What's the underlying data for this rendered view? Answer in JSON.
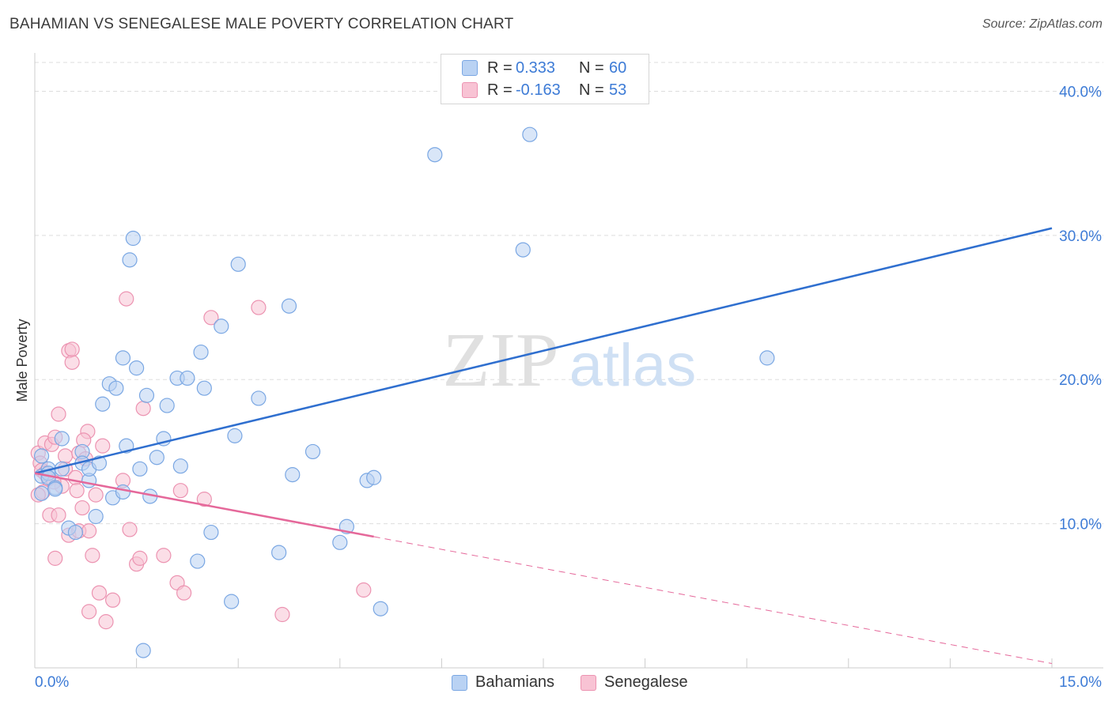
{
  "title": "BAHAMIAN VS SENEGALESE MALE POVERTY CORRELATION CHART",
  "source": "Source: ZipAtlas.com",
  "watermark": {
    "zip": "ZIP",
    "atlas": "atlas"
  },
  "legend": {
    "rows": [
      {
        "r_label": "R =",
        "r_value": "0.333",
        "n_label": "N =",
        "n_value": "60"
      },
      {
        "r_label": "R =",
        "r_value": "-0.163",
        "n_label": "N =",
        "n_value": "53"
      }
    ]
  },
  "bottom_legend": [
    "Bahamians",
    "Senegalese"
  ],
  "colors": {
    "blue_fill": "#b9d2f3",
    "blue_stroke": "#7aa7e3",
    "blue_line": "#2f6fcf",
    "pink_fill": "#f8c3d4",
    "pink_stroke": "#ec93b1",
    "pink_line": "#e5689a",
    "axis_text": "#3d7bd6",
    "grid": "#dddddd"
  },
  "chart_data": {
    "type": "scatter",
    "title": "BAHAMIAN VS SENEGALESE MALE POVERTY CORRELATION CHART",
    "xlabel": "",
    "ylabel": "Male Poverty",
    "xlim": [
      0,
      15
    ],
    "ylim": [
      0,
      42
    ],
    "x_tick_labels": [
      "0.0%",
      "15.0%"
    ],
    "y_ticks": [
      10,
      20,
      30,
      40
    ],
    "y_tick_labels": [
      "10.0%",
      "20.0%",
      "30.0%",
      "40.0%"
    ],
    "series": [
      {
        "name": "Bahamians",
        "r": 0.333,
        "n": 60,
        "trend": {
          "x": [
            0,
            15
          ],
          "y": [
            13.5,
            30.5
          ],
          "style": "solid"
        },
        "points": [
          [
            0.1,
            14.7
          ],
          [
            0.1,
            13.3
          ],
          [
            0.1,
            12.1
          ],
          [
            0.2,
            13.8
          ],
          [
            0.2,
            13.5
          ],
          [
            0.2,
            13.2
          ],
          [
            0.3,
            12.5
          ],
          [
            0.3,
            12.4
          ],
          [
            0.4,
            15.9
          ],
          [
            0.4,
            13.8
          ],
          [
            0.5,
            9.7
          ],
          [
            0.6,
            9.4
          ],
          [
            0.7,
            15.0
          ],
          [
            0.7,
            14.2
          ],
          [
            0.8,
            13.0
          ],
          [
            0.8,
            13.8
          ],
          [
            0.9,
            10.5
          ],
          [
            0.95,
            14.2
          ],
          [
            1.0,
            18.3
          ],
          [
            1.1,
            19.7
          ],
          [
            1.15,
            11.8
          ],
          [
            1.2,
            19.4
          ],
          [
            1.3,
            21.5
          ],
          [
            1.3,
            12.2
          ],
          [
            1.35,
            15.4
          ],
          [
            1.4,
            28.3
          ],
          [
            1.45,
            29.8
          ],
          [
            1.5,
            20.8
          ],
          [
            1.55,
            13.8
          ],
          [
            1.6,
            1.2
          ],
          [
            1.65,
            18.9
          ],
          [
            1.7,
            11.9
          ],
          [
            1.8,
            14.6
          ],
          [
            1.9,
            15.9
          ],
          [
            1.95,
            18.2
          ],
          [
            2.1,
            20.1
          ],
          [
            2.15,
            14.0
          ],
          [
            2.25,
            20.1
          ],
          [
            2.4,
            7.4
          ],
          [
            2.45,
            21.9
          ],
          [
            2.5,
            19.4
          ],
          [
            2.6,
            9.4
          ],
          [
            2.75,
            23.7
          ],
          [
            2.9,
            4.6
          ],
          [
            2.95,
            16.1
          ],
          [
            3.0,
            28.0
          ],
          [
            3.3,
            18.7
          ],
          [
            3.6,
            8.0
          ],
          [
            3.75,
            25.1
          ],
          [
            3.8,
            13.4
          ],
          [
            4.1,
            15.0
          ],
          [
            4.5,
            8.7
          ],
          [
            4.6,
            9.8
          ],
          [
            4.9,
            13.0
          ],
          [
            5.0,
            13.2
          ],
          [
            5.1,
            4.1
          ],
          [
            5.9,
            35.6
          ],
          [
            7.2,
            29.0
          ],
          [
            7.3,
            37.0
          ],
          [
            10.8,
            21.5
          ]
        ]
      },
      {
        "name": "Senegalese",
        "r": -0.163,
        "n": 53,
        "trend": {
          "x": [
            0,
            5.0
          ],
          "y": [
            13.5,
            9.1
          ],
          "style": "solid"
        },
        "trend_extension": {
          "x": [
            5.0,
            15
          ],
          "y": [
            9.1,
            0.3
          ],
          "style": "dashed"
        },
        "points": [
          [
            0.05,
            14.9
          ],
          [
            0.08,
            14.2
          ],
          [
            0.1,
            13.7
          ],
          [
            0.12,
            12.2
          ],
          [
            0.15,
            15.6
          ],
          [
            0.2,
            13.1
          ],
          [
            0.22,
            10.6
          ],
          [
            0.25,
            15.5
          ],
          [
            0.3,
            7.6
          ],
          [
            0.3,
            16.0
          ],
          [
            0.35,
            17.6
          ],
          [
            0.35,
            10.6
          ],
          [
            0.4,
            12.6
          ],
          [
            0.45,
            13.8
          ],
          [
            0.45,
            14.7
          ],
          [
            0.5,
            22.0
          ],
          [
            0.5,
            9.2
          ],
          [
            0.55,
            21.2
          ],
          [
            0.55,
            22.1
          ],
          [
            0.6,
            13.2
          ],
          [
            0.65,
            14.9
          ],
          [
            0.65,
            9.5
          ],
          [
            0.7,
            11.1
          ],
          [
            0.75,
            14.5
          ],
          [
            0.78,
            16.4
          ],
          [
            0.8,
            9.5
          ],
          [
            0.8,
            3.9
          ],
          [
            0.85,
            7.8
          ],
          [
            0.9,
            12.0
          ],
          [
            0.95,
            5.2
          ],
          [
            1.0,
            15.4
          ],
          [
            1.05,
            3.2
          ],
          [
            1.15,
            4.7
          ],
          [
            1.3,
            13.0
          ],
          [
            1.35,
            25.6
          ],
          [
            1.4,
            9.6
          ],
          [
            1.5,
            7.2
          ],
          [
            1.55,
            7.6
          ],
          [
            1.6,
            18.0
          ],
          [
            2.1,
            5.9
          ],
          [
            2.15,
            12.3
          ],
          [
            2.2,
            5.2
          ],
          [
            2.5,
            11.7
          ],
          [
            2.6,
            24.3
          ],
          [
            3.3,
            25.0
          ],
          [
            3.65,
            3.7
          ],
          [
            4.85,
            5.4
          ],
          [
            0.05,
            12.0
          ],
          [
            0.15,
            13.5
          ],
          [
            0.28,
            12.9
          ],
          [
            0.62,
            12.3
          ],
          [
            0.72,
            15.8
          ],
          [
            1.9,
            7.8
          ]
        ]
      }
    ]
  }
}
